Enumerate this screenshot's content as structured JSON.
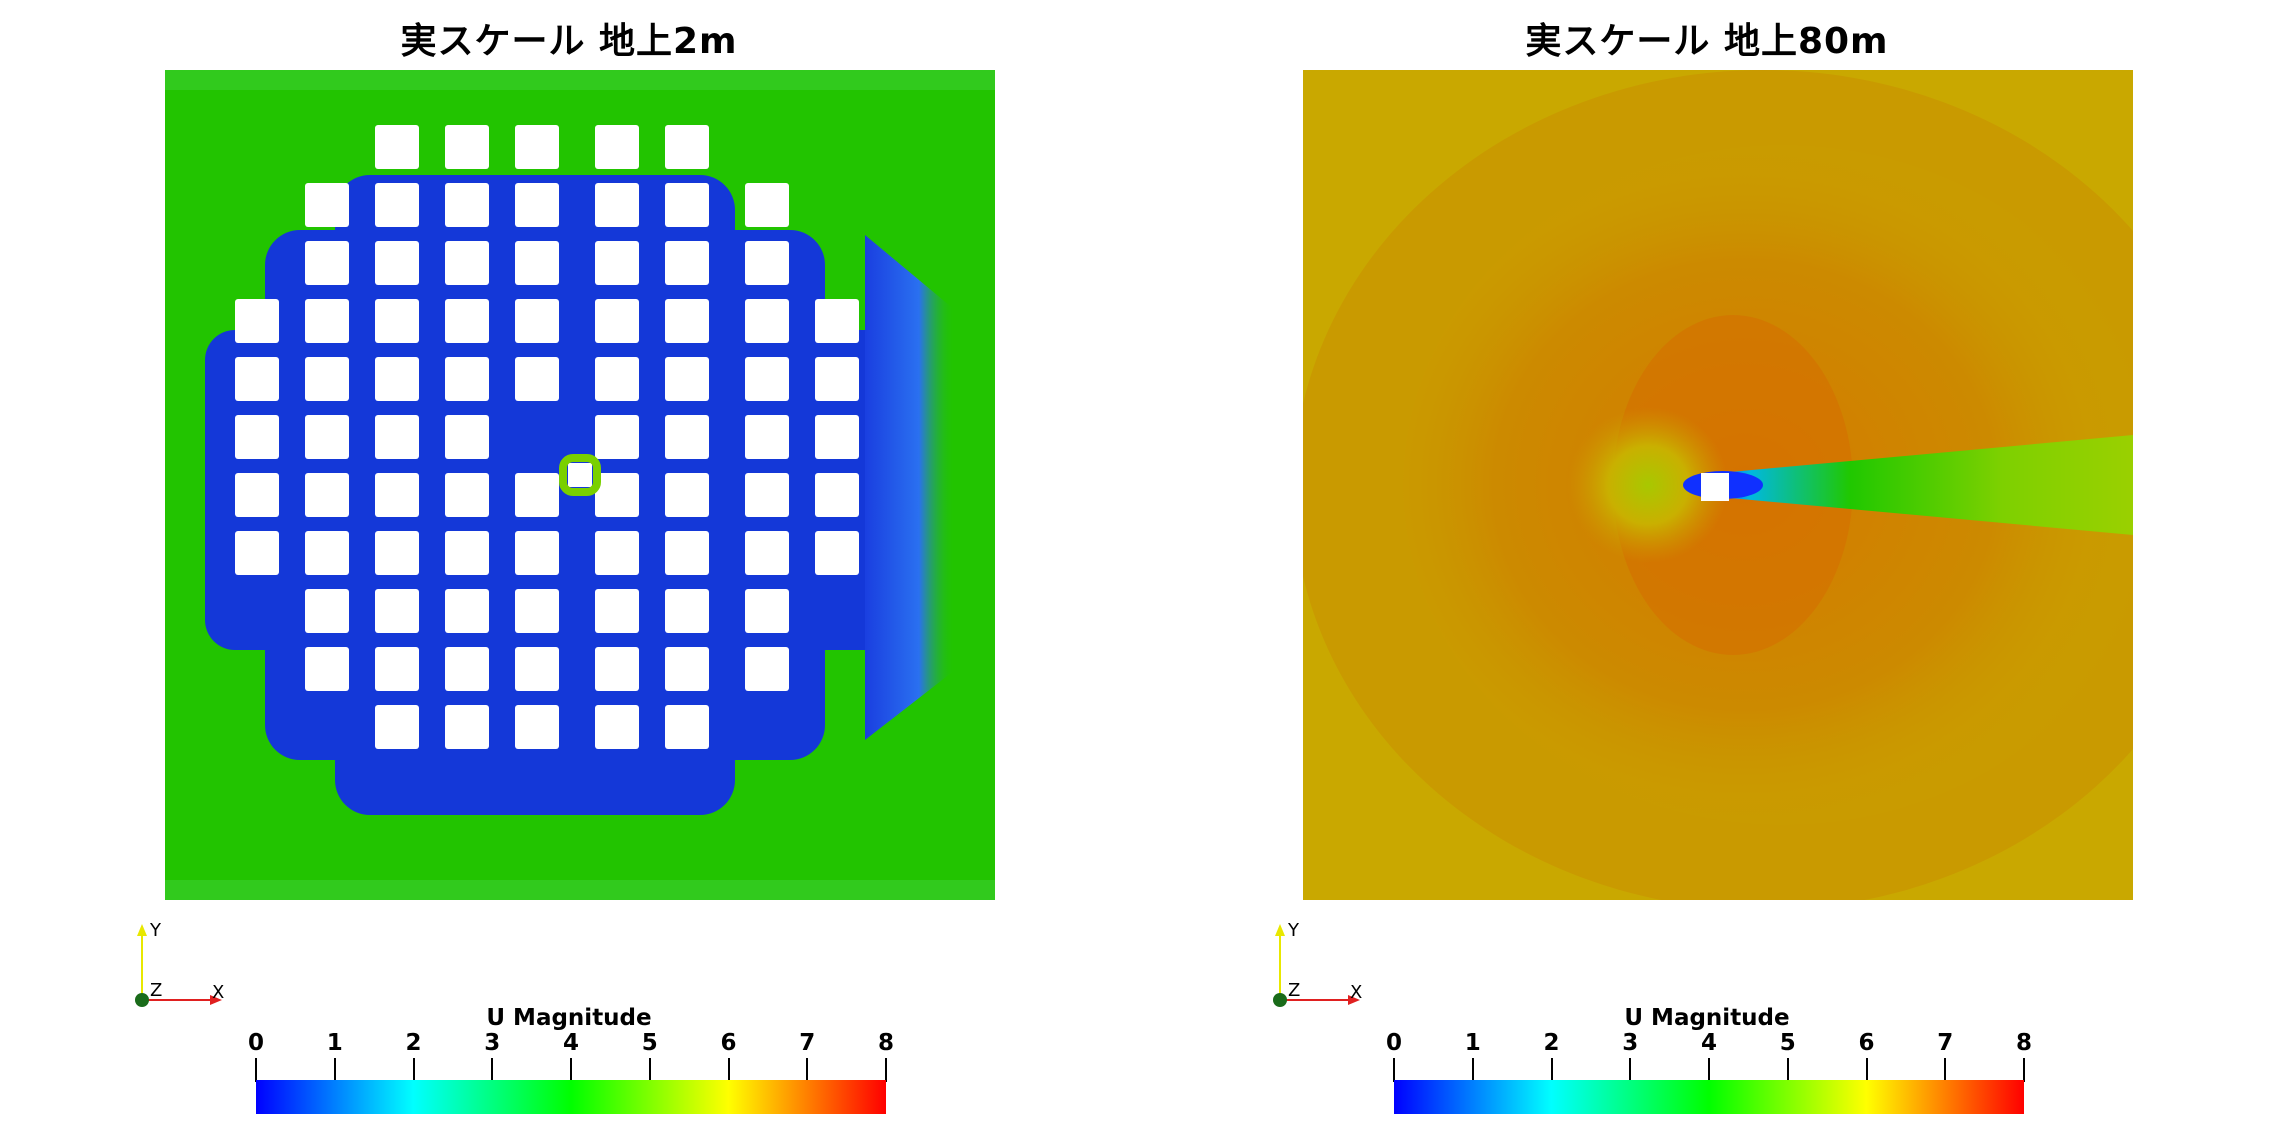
{
  "panels": [
    {
      "title": "実スケール 地上2m",
      "colorbar": {
        "title": "U Magnitude",
        "ticks": [
          "0",
          "1",
          "2",
          "3",
          "4",
          "5",
          "6",
          "7",
          "8"
        ]
      },
      "axes": {
        "y": "Y",
        "z": "Z",
        "x": "X"
      }
    },
    {
      "title": "実スケール 地上80m",
      "colorbar": {
        "title": "U Magnitude",
        "ticks": [
          "0",
          "1",
          "2",
          "3",
          "4",
          "5",
          "6",
          "7",
          "8"
        ]
      },
      "axes": {
        "y": "Y",
        "z": "Z",
        "x": "X"
      }
    }
  ],
  "colors": {
    "background_low": "#22c400",
    "background_high": "#c98e00",
    "wake": "#1030d0",
    "building": "#ffffff"
  }
}
